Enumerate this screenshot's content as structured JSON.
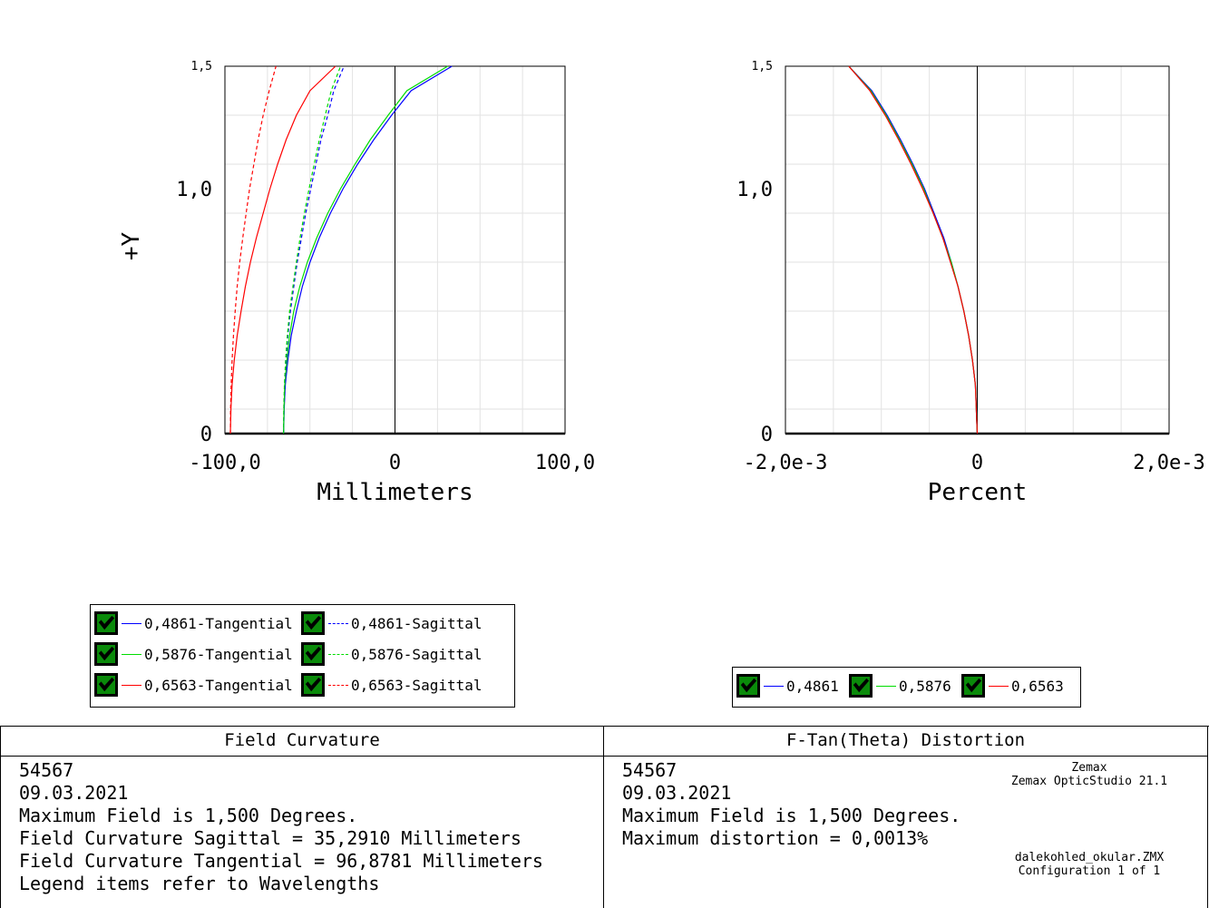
{
  "chart_data": [
    {
      "type": "line",
      "title": "Field Curvature",
      "xlabel": "Millimeters",
      "ylabel": "+Y",
      "xlim": [
        -100.0,
        100.0
      ],
      "ylim": [
        0,
        1.5
      ],
      "xticks": [
        "-100,0",
        "0",
        "100,0"
      ],
      "yticks": [
        "0",
        "1,0",
        "1,5"
      ],
      "grid": true,
      "legend_position": "bottom-left",
      "y": [
        0.0,
        0.1,
        0.2,
        0.3,
        0.4,
        0.5,
        0.6,
        0.7,
        0.8,
        0.9,
        1.0,
        1.1,
        1.2,
        1.3,
        1.4,
        1.5
      ],
      "series": [
        {
          "name": "0,4861-Tangential",
          "color": "#0000ff",
          "dash": "solid",
          "x": [
            -65.5,
            -65.2,
            -64.5,
            -63.0,
            -61.0,
            -58.0,
            -54.5,
            -50.0,
            -44.5,
            -38.0,
            -30.5,
            -22.0,
            -12.5,
            -2.0,
            9.5,
            33.5
          ]
        },
        {
          "name": "0,5876-Tangential",
          "color": "#00dd00",
          "dash": "solid",
          "x": [
            -65.5,
            -65.3,
            -64.8,
            -63.6,
            -62.0,
            -59.5,
            -56.0,
            -51.5,
            -46.0,
            -39.5,
            -32.0,
            -23.5,
            -14.5,
            -4.0,
            7.0,
            31.0
          ]
        },
        {
          "name": "0,6563-Tangential",
          "color": "#ff0000",
          "dash": "solid",
          "x": [
            -96.8,
            -96.5,
            -95.8,
            -94.5,
            -92.8,
            -90.5,
            -88.0,
            -85.0,
            -81.5,
            -77.5,
            -73.5,
            -69.0,
            -64.0,
            -58.0,
            -50.0,
            -35.0
          ]
        },
        {
          "name": "0,4861-Sagittal",
          "color": "#0000ff",
          "dash": "dashed",
          "x": [
            -65.5,
            -65.3,
            -64.8,
            -64.0,
            -63.0,
            -61.5,
            -59.5,
            -57.5,
            -55.0,
            -52.5,
            -49.5,
            -46.5,
            -43.5,
            -39.5,
            -36.0,
            -30.0
          ]
        },
        {
          "name": "0,5876-Sagittal",
          "color": "#00dd00",
          "dash": "dashed",
          "x": [
            -65.5,
            -65.4,
            -65.0,
            -64.3,
            -63.3,
            -62.0,
            -60.0,
            -58.0,
            -55.8,
            -53.3,
            -50.5,
            -47.5,
            -44.5,
            -41.0,
            -37.5,
            -32.0
          ]
        },
        {
          "name": "0,6563-Sagittal",
          "color": "#ff0000",
          "dash": "dashed",
          "x": [
            -96.8,
            -96.7,
            -96.3,
            -95.8,
            -95.0,
            -94.0,
            -92.8,
            -91.3,
            -89.5,
            -87.5,
            -85.5,
            -83.0,
            -80.5,
            -77.5,
            -74.0,
            -70.0
          ]
        }
      ]
    },
    {
      "type": "line",
      "title": "F-Tan(Theta) Distortion",
      "xlabel": "Percent",
      "ylabel": "",
      "xlim": [
        -0.002,
        0.002
      ],
      "ylim": [
        0,
        1.5
      ],
      "xticks": [
        "-2,0e-3",
        "0",
        "2,0e-3"
      ],
      "yticks": [
        "0",
        "1,0",
        "1,5"
      ],
      "grid": true,
      "legend_position": "bottom",
      "y": [
        0.0,
        0.1,
        0.2,
        0.3,
        0.4,
        0.5,
        0.6,
        0.7,
        0.8,
        0.9,
        1.0,
        1.1,
        1.2,
        1.3,
        1.4,
        1.5
      ],
      "series": [
        {
          "name": "0,4861",
          "color": "#0000ff",
          "dash": "solid",
          "x": [
            0.0,
            -1e-05,
            -2e-05,
            -5e-05,
            -9e-05,
            -0.00014,
            -0.0002,
            -0.00027,
            -0.00035,
            -0.00045,
            -0.00055,
            -0.00067,
            -0.0008,
            -0.00094,
            -0.0011,
            -0.00134
          ]
        },
        {
          "name": "0,5876",
          "color": "#00dd00",
          "dash": "solid",
          "x": [
            0.0,
            -1e-05,
            -2e-05,
            -5e-05,
            -9e-05,
            -0.00014,
            -0.0002,
            -0.00027,
            -0.00036,
            -0.00046,
            -0.00056,
            -0.00068,
            -0.00081,
            -0.00095,
            -0.00111,
            -0.00134
          ]
        },
        {
          "name": "0,6563",
          "color": "#ff0000",
          "dash": "solid",
          "x": [
            0.0,
            -1e-05,
            -2e-05,
            -5e-05,
            -9e-05,
            -0.00014,
            -0.0002,
            -0.00028,
            -0.00036,
            -0.00046,
            -0.00057,
            -0.00069,
            -0.00082,
            -0.00096,
            -0.00112,
            -0.00134
          ]
        }
      ]
    }
  ],
  "legend_left": {
    "items": [
      {
        "label": "0,4861-Tangential",
        "color": "#0000ff",
        "dash": "solid"
      },
      {
        "label": "0,4861-Sagittal",
        "color": "#0000ff",
        "dash": "dashed"
      },
      {
        "label": "0,5876-Tangential",
        "color": "#00dd00",
        "dash": "solid"
      },
      {
        "label": "0,5876-Sagittal",
        "color": "#00dd00",
        "dash": "dashed"
      },
      {
        "label": "0,6563-Tangential",
        "color": "#ff0000",
        "dash": "solid"
      },
      {
        "label": "0,6563-Sagittal",
        "color": "#ff0000",
        "dash": "dashed"
      }
    ]
  },
  "legend_right": {
    "items": [
      {
        "label": "0,4861",
        "color": "#0000ff",
        "dash": "solid"
      },
      {
        "label": "0,5876",
        "color": "#00dd00",
        "dash": "solid"
      },
      {
        "label": "0,6563",
        "color": "#ff0000",
        "dash": "solid"
      }
    ]
  },
  "info_left": {
    "title": "Field Curvature",
    "lines": [
      "54567",
      "09.03.2021",
      "Maximum Field is 1,500 Degrees.",
      "Field Curvature Sagittal = 35,2910 Millimeters",
      "Field Curvature Tangential = 96,8781 Millimeters",
      "Legend items refer to Wavelengths"
    ]
  },
  "info_right": {
    "title": "F-Tan(Theta) Distortion",
    "lines": [
      "54567",
      "09.03.2021",
      "Maximum Field is 1,500 Degrees.",
      "Maximum distortion = 0,0013%"
    ],
    "vendor": "Zemax",
    "product": "Zemax OpticStudio 21.1",
    "file": "dalekohled_okular.ZMX",
    "config": "Configuration 1 of 1"
  }
}
